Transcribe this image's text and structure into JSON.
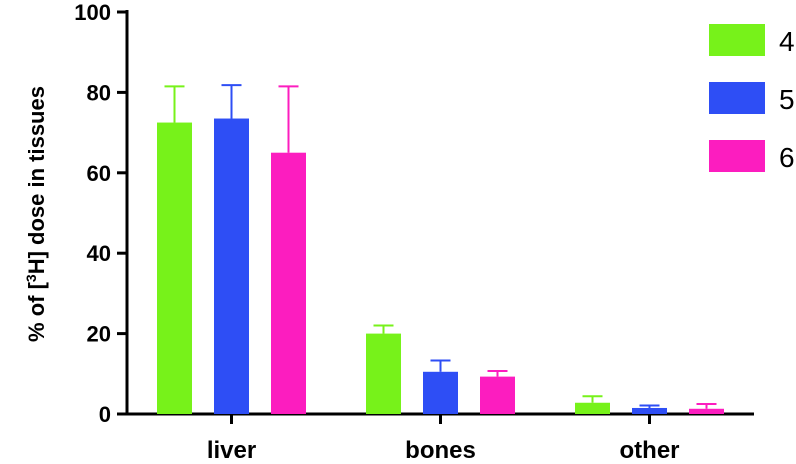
{
  "chart_data": {
    "type": "bar",
    "title": "",
    "xlabel": "",
    "ylabel_parts": [
      "% of [",
      "3",
      "H] dose in tissues"
    ],
    "ylim": [
      0,
      100
    ],
    "yticks": [
      0,
      20,
      40,
      60,
      80,
      100
    ],
    "categories": [
      "liver",
      "bones",
      "other"
    ],
    "series": [
      {
        "name": "4",
        "color": "#77f21a",
        "values": [
          72.5,
          20,
          2.8
        ],
        "errors": [
          9,
          2,
          1.6
        ]
      },
      {
        "name": "5",
        "color": "#2e4ef5",
        "values": [
          73.5,
          10.5,
          1.5
        ],
        "errors": [
          8.3,
          2.8,
          0.6
        ]
      },
      {
        "name": "6",
        "color": "#fc1dbf",
        "values": [
          65,
          9.3,
          1.3
        ],
        "errors": [
          16.5,
          1.4,
          1.2
        ]
      }
    ],
    "legend_position": "top-right",
    "grid": false
  }
}
